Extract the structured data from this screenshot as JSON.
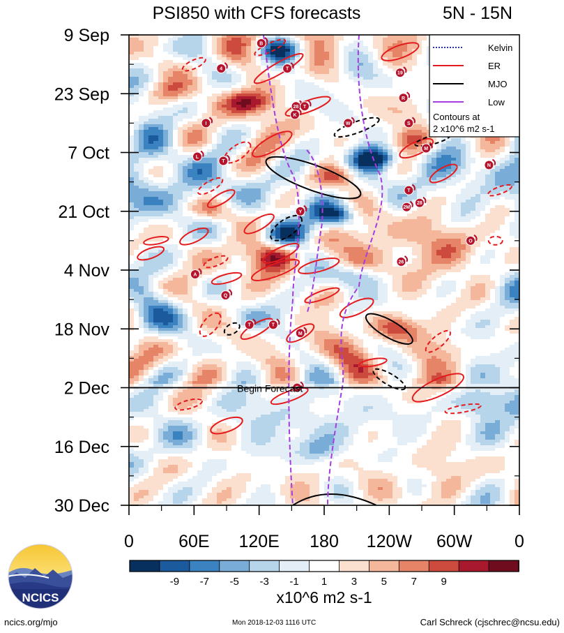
{
  "chart_data": {
    "type": "heatmap",
    "title": "PSI850 with CFS forecasts",
    "region": "5N - 15N",
    "y_tick_labels": [
      "9 Sep",
      "23 Sep",
      "7 Oct",
      "21 Oct",
      "4 Nov",
      "18 Nov",
      "2 Dec",
      "16 Dec",
      "30 Dec"
    ],
    "x_tick_labels": [
      "0",
      "60E",
      "120E",
      "180",
      "120W",
      "60W",
      "0"
    ],
    "x_range_deg_east": [
      0,
      360
    ],
    "time_range": [
      "2018-09-09",
      "2018-12-30"
    ],
    "forecast_begin_date": "2018-12-02",
    "forecast_label": "Begin Forecast",
    "colorbar": {
      "tick_labels": [
        "-9",
        "-7",
        "-5",
        "-3",
        "-1",
        "1",
        "3",
        "5",
        "7",
        "9"
      ],
      "colors": [
        "#07305f",
        "#1b5a9c",
        "#3b82c0",
        "#79acd6",
        "#b6d4ea",
        "#e3eef7",
        "#ffffff",
        "#fbe0d0",
        "#f5b79c",
        "#e68468",
        "#cc4b3e",
        "#a8192e",
        "#6f0c1e"
      ],
      "units_label": "x10^6 m2 s-1"
    },
    "legend": {
      "placement": "top-right",
      "items": [
        {
          "label": "Kelvin",
          "color": "#2a2ad8",
          "style": "dotted"
        },
        {
          "label": "ER",
          "color": "#e41a1c",
          "style": "solid"
        },
        {
          "label": "MJO",
          "color": "#000000",
          "style": "solid"
        },
        {
          "label": "Low",
          "color": "#a33de0",
          "style": "solid"
        }
      ],
      "contour_note_line1": "Contours at",
      "contour_note_line2": "2 x10^6 m2 s-1"
    },
    "storm_markers": [
      {
        "label": "B",
        "lon": 122,
        "date": "2018-09-11"
      },
      {
        "label": "I",
        "lon": 71,
        "date": "2018-09-30"
      },
      {
        "label": "4",
        "lon": 85,
        "date": "2018-09-17"
      },
      {
        "label": "T",
        "lon": 146,
        "date": "2018-09-17"
      },
      {
        "label": "19",
        "lon": 250,
        "date": "2018-09-18"
      },
      {
        "label": "R",
        "lon": 253,
        "date": "2018-09-24"
      },
      {
        "label": "28",
        "lon": 154,
        "date": "2018-09-26"
      },
      {
        "label": "T",
        "lon": 162,
        "date": "2018-09-26"
      },
      {
        "label": "K",
        "lon": 153,
        "date": "2018-09-28"
      },
      {
        "label": "W",
        "lon": 202,
        "date": "2018-09-30"
      },
      {
        "label": "S",
        "lon": 258,
        "date": "2018-09-30"
      },
      {
        "label": "L",
        "lon": 63,
        "date": "2018-10-08"
      },
      {
        "label": "T",
        "lon": 87,
        "date": "2018-10-09"
      },
      {
        "label": "M",
        "lon": 274,
        "date": "2018-10-06"
      },
      {
        "label": "N",
        "lon": 332,
        "date": "2018-10-10"
      },
      {
        "label": "T",
        "lon": 258,
        "date": "2018-10-16"
      },
      {
        "label": "2M",
        "lon": 256,
        "date": "2018-10-20"
      },
      {
        "label": "28",
        "lon": 268,
        "date": "2018-10-19"
      },
      {
        "label": "Y",
        "lon": 158,
        "date": "2018-10-21"
      },
      {
        "label": "O",
        "lon": 315,
        "date": "2018-10-28"
      },
      {
        "label": "26",
        "lon": 251,
        "date": "2018-11-02"
      },
      {
        "label": "A",
        "lon": 61,
        "date": "2018-11-05"
      },
      {
        "label": "Q",
        "lon": 89,
        "date": "2018-11-10"
      },
      {
        "label": "T",
        "lon": 111,
        "date": "2018-11-17"
      },
      {
        "label": "T",
        "lon": 133,
        "date": "2018-11-17"
      },
      {
        "label": "M",
        "lon": 158,
        "date": "2018-11-19"
      },
      {
        "label": "O",
        "lon": 155,
        "date": "2018-12-02"
      }
    ]
  },
  "footer": {
    "url": "ncics.org/mjo",
    "timestamp": "Mon 2018-12-03 1116 UTC",
    "author": "Carl Schreck (cjschrec@ncsu.edu)",
    "logo_text": "NCICS"
  }
}
